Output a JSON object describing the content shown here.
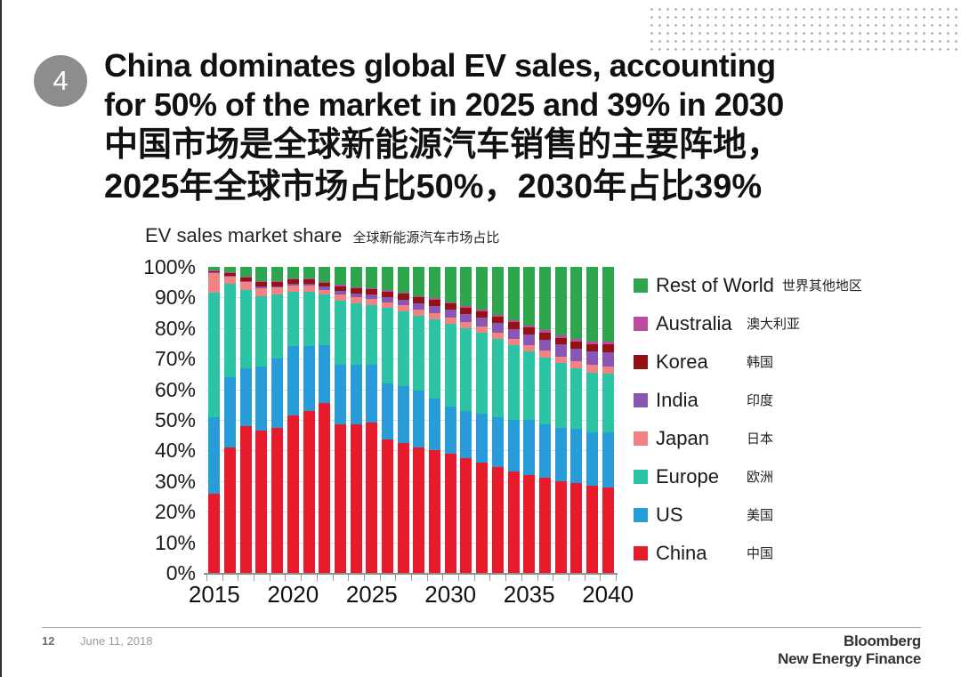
{
  "slide": {
    "badge": "4",
    "title_lines": [
      "China dominates global EV sales, accounting",
      "for 50% of the market in 2025 and 39% in 2030",
      "中国市场是全球新能源汽车销售的主要阵地，",
      "2025年全球市场占比50%，2030年占比39%"
    ]
  },
  "chart_data": {
    "type": "bar",
    "stacked": true,
    "units": "percent of global EV sales",
    "title": "EV sales market share",
    "title_cn": "全球新能源汽车市场占比",
    "ylim": [
      0,
      100
    ],
    "grid": true,
    "legend_position": "right",
    "y_tick_labels": [
      "100%",
      "90%",
      "80%",
      "70%",
      "60%",
      "50%",
      "40%",
      "30%",
      "20%",
      "10%",
      "0%"
    ],
    "x_tick_labels": [
      "2015",
      "2020",
      "2025",
      "2030",
      "2035",
      "2040"
    ],
    "years": [
      2015,
      2016,
      2017,
      2018,
      2019,
      2020,
      2021,
      2022,
      2023,
      2024,
      2025,
      2026,
      2027,
      2028,
      2029,
      2030,
      2031,
      2032,
      2033,
      2034,
      2035,
      2036,
      2037,
      2038,
      2039,
      2040
    ],
    "series_bottom_to_top": [
      {
        "name": "China",
        "name_cn": "中国",
        "color": "#e81b2c",
        "values": [
          26,
          41,
          48,
          46.5,
          47.5,
          51.5,
          53,
          55.5,
          48.5,
          48.5,
          49,
          43.5,
          42.5,
          41,
          40,
          39,
          37.5,
          36,
          34.5,
          33,
          32,
          31,
          30,
          29.5,
          28.5,
          28
        ]
      },
      {
        "name": "US",
        "name_cn": "美国",
        "color": "#289cd8",
        "values": [
          25,
          23,
          19,
          21,
          22.5,
          22.5,
          21,
          19,
          19.5,
          19.5,
          19,
          18.5,
          18.5,
          18.5,
          17,
          15.5,
          15.5,
          16,
          16.5,
          17,
          18,
          17.5,
          17.5,
          17.5,
          17.5,
          18
        ]
      },
      {
        "name": "Europe",
        "name_cn": "欧洲",
        "color": "#2bc4a4",
        "values": [
          40.5,
          30.5,
          25.5,
          23,
          21,
          18,
          18,
          16.5,
          21,
          20,
          19.5,
          24.5,
          24.5,
          24.5,
          26,
          27,
          27,
          26.5,
          25.5,
          24.5,
          22.5,
          22,
          21,
          20,
          19.5,
          19
        ]
      },
      {
        "name": "Japan",
        "name_cn": "日本",
        "color": "#f18383",
        "values": [
          6.5,
          2.3,
          2.6,
          2.6,
          2.2,
          2,
          1.8,
          1.5,
          2,
          2,
          2,
          2,
          2,
          2,
          2,
          2,
          2,
          2,
          2,
          2,
          2,
          2.1,
          2.2,
          2.2,
          2.4,
          2.5
        ]
      },
      {
        "name": "India",
        "name_cn": "印度",
        "color": "#8a56b4",
        "values": [
          0.2,
          0.3,
          0.4,
          0.5,
          0.5,
          0.5,
          0.7,
          1,
          1.2,
          1.4,
          1.5,
          1.7,
          1.9,
          2.1,
          2.3,
          2.5,
          2.7,
          2.9,
          3.1,
          3.3,
          3.5,
          3.7,
          3.9,
          4.1,
          4.4,
          4.7
        ]
      },
      {
        "name": "Korea",
        "name_cn": "韩国",
        "color": "#941114",
        "values": [
          0.4,
          0.9,
          1.1,
          1.4,
          1.4,
          1.4,
          1.4,
          1.4,
          1.5,
          1.5,
          1.6,
          1.7,
          1.8,
          1.9,
          1.9,
          2,
          2,
          2.1,
          2.1,
          2.2,
          2.2,
          2.3,
          2.3,
          2.4,
          2.4,
          2.5
        ]
      },
      {
        "name": "Australia",
        "name_cn": "澳大利亚",
        "color": "#bf4ba0",
        "values": [
          0.1,
          0.2,
          0.2,
          0.3,
          0.3,
          0.3,
          0.3,
          0.3,
          0.4,
          0.4,
          0.4,
          0.5,
          0.5,
          0.5,
          0.5,
          0.5,
          0.6,
          0.6,
          0.6,
          0.6,
          0.7,
          0.7,
          0.7,
          0.7,
          0.8,
          0.8
        ]
      },
      {
        "name": "Rest of World",
        "name_cn": "世界其他地区",
        "color": "#2ea64d",
        "values": [
          1.3,
          1.8,
          3.2,
          4.7,
          4.6,
          3.8,
          3.8,
          4.8,
          5.9,
          6.7,
          7,
          7.6,
          8.3,
          9.5,
          10.3,
          11.5,
          12.7,
          13.9,
          15.7,
          17.4,
          19.1,
          20.7,
          22.4,
          23.6,
          24.5,
          24.5
        ]
      }
    ]
  },
  "footer": {
    "page_number": "12",
    "date": "June 11, 2018",
    "logo_line1": "Bloomberg",
    "logo_line2": "New Energy Finance"
  }
}
